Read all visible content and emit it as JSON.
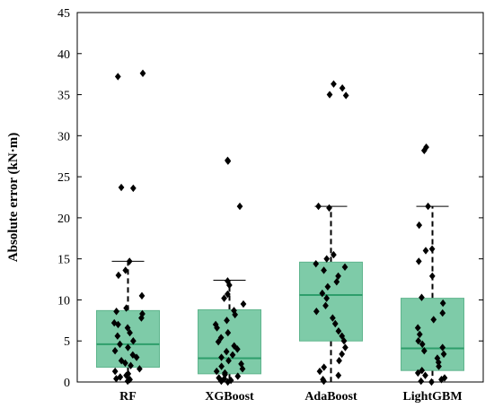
{
  "chart_data": {
    "type": "box",
    "title": "",
    "xlabel": "",
    "ylabel": "Absolute error (kN·m)",
    "ylim": [
      0,
      45
    ],
    "yticks": [
      0,
      5,
      10,
      15,
      20,
      25,
      30,
      35,
      40,
      45
    ],
    "grid": false,
    "categories": [
      "RF",
      "XGBoost",
      "AdaBoost",
      "LightGBM"
    ],
    "colors": {
      "box_fill": "#7ecba8",
      "box_stroke": "#5fb58d",
      "median": "#2e9e6b",
      "points": "#000000",
      "whisker": "#000000"
    },
    "boxes": [
      {
        "name": "RF",
        "whisker_low": 0,
        "q1": 1.8,
        "median": 4.6,
        "q3": 8.7,
        "whisker_high": 14.7
      },
      {
        "name": "XGBoost",
        "whisker_low": 0,
        "q1": 1.0,
        "median": 2.9,
        "q3": 8.8,
        "whisker_high": 12.4
      },
      {
        "name": "AdaBoost",
        "whisker_low": 0,
        "q1": 5.0,
        "median": 10.6,
        "q3": 14.6,
        "whisker_high": 21.4
      },
      {
        "name": "LightGBM",
        "whisker_low": 0,
        "q1": 1.4,
        "median": 4.1,
        "q3": 10.2,
        "whisker_high": 21.4
      }
    ],
    "points": [
      [
        0.1,
        0.3,
        0.4,
        0.6,
        0.8,
        1.0,
        1.3,
        1.6,
        2.0,
        2.3,
        2.6,
        3.0,
        3.3,
        3.8,
        4.2,
        4.6,
        5.0,
        5.6,
        6.0,
        6.6,
        7.0,
        7.2,
        7.8,
        8.3,
        8.6,
        9.0,
        10.5,
        13.0,
        13.6,
        14.7,
        23.6,
        23.7,
        37.2,
        37.6
      ],
      [
        0.0,
        0.1,
        0.2,
        0.4,
        0.5,
        0.7,
        0.9,
        1.1,
        1.3,
        1.6,
        1.9,
        2.2,
        2.6,
        3.0,
        3.3,
        3.7,
        4.0,
        4.4,
        4.9,
        5.4,
        6.0,
        6.6,
        7.0,
        7.5,
        8.2,
        8.7,
        9.5,
        10.2,
        10.7,
        11.8,
        12.3,
        21.4,
        26.9,
        27.0
      ],
      [
        0.1,
        0.3,
        0.8,
        1.3,
        1.8,
        2.6,
        3.4,
        4.2,
        5.0,
        5.6,
        6.2,
        7.1,
        7.8,
        8.6,
        9.3,
        10.2,
        10.8,
        11.6,
        12.2,
        12.9,
        13.6,
        14.0,
        14.4,
        15.0,
        15.5,
        21.2,
        21.4,
        34.9,
        35.0,
        35.8,
        36.3
      ],
      [
        0.0,
        0.1,
        0.3,
        0.5,
        0.8,
        1.1,
        1.4,
        1.9,
        2.4,
        2.9,
        3.4,
        3.8,
        4.2,
        4.6,
        5.0,
        5.8,
        6.6,
        7.6,
        8.4,
        9.6,
        10.3,
        12.9,
        14.7,
        16.0,
        16.2,
        19.1,
        21.4,
        28.2,
        28.6
      ]
    ]
  }
}
